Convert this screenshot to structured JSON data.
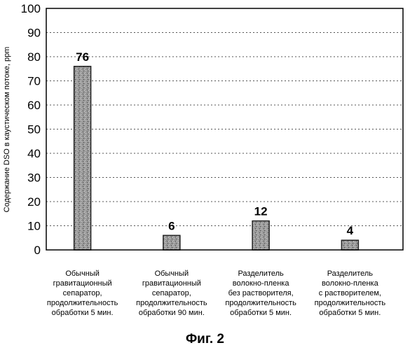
{
  "chart_data": {
    "type": "bar",
    "ylabel": "Содержание DSO в каустическом потоке, ppm",
    "ylim": [
      0,
      100
    ],
    "yticks": [
      0,
      10,
      20,
      30,
      40,
      50,
      60,
      70,
      80,
      90,
      100
    ],
    "grid": true,
    "legend": "none",
    "categories": [
      "Обычный гравитационный сепаратор, продолжительность обработки 5 мин.",
      "Обычный гравитационный сепаратор, продолжительность обработки 90 мин.",
      "Разделитель волокно-пленка без растворителя, продолжительность обработки 5 мин.",
      "Разделитель волокно-пленка с растворителем, продолжительность обработки 5 мин."
    ],
    "category_lines": [
      [
        "Обычный",
        "гравитационный",
        "сепаратор,",
        "продолжительность",
        "обработки 5 мин."
      ],
      [
        "Обычный",
        "гравитационный",
        "сепаратор,",
        "продолжительность",
        "обработки 90 мин."
      ],
      [
        "Разделитель",
        "волокно-пленка",
        "без растворителя,",
        "продолжительность",
        "обработки 5 мин."
      ],
      [
        "Разделитель",
        "волокно-пленка",
        "с растворителем,",
        "продолжительность",
        "обработки 5 мин."
      ]
    ],
    "values": [
      76,
      6,
      12,
      4
    ],
    "data_labels": [
      "76",
      "6",
      "12",
      "4"
    ]
  },
  "caption": "Фиг. 2",
  "colors": {
    "bar_fill": "#9a9a9a",
    "bar_edge": "#222222",
    "grid": "#555555",
    "axis": "#000000"
  }
}
